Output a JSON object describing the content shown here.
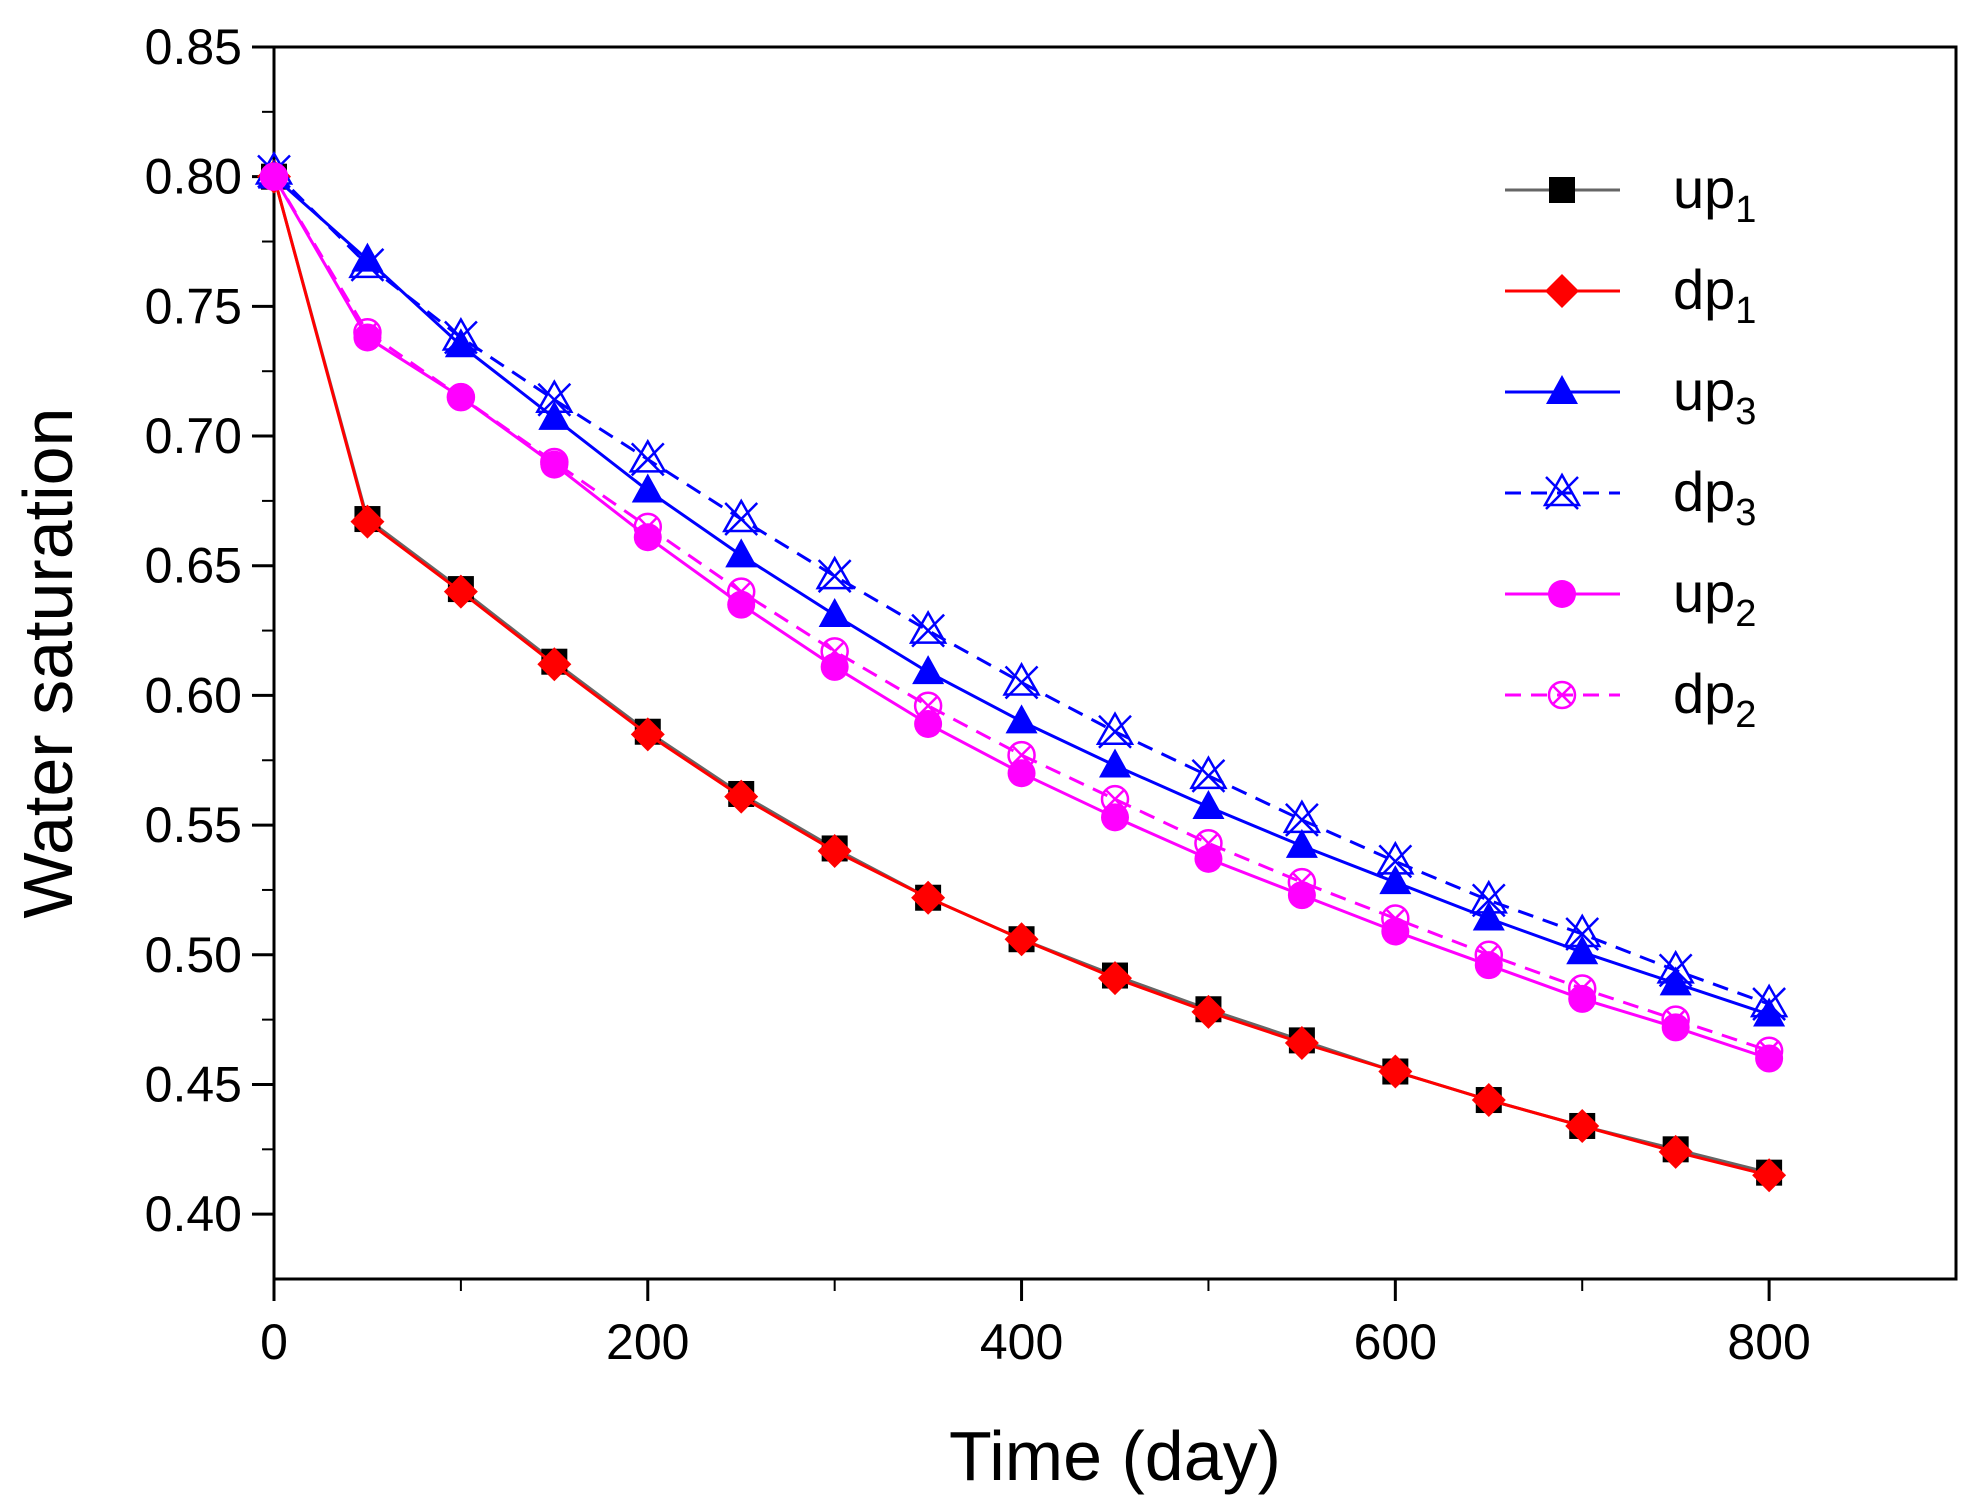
{
  "chart_data": {
    "type": "line",
    "xlabel": "Time (day)",
    "ylabel": "Water saturation",
    "xlim": [
      0,
      900
    ],
    "ylim": [
      0.375,
      0.85
    ],
    "xticks": [
      0,
      200,
      400,
      600,
      800
    ],
    "xtick_labels": [
      "0",
      "200",
      "400",
      "600",
      "800"
    ],
    "yticks": [
      0.4,
      0.45,
      0.5,
      0.55,
      0.6,
      0.65,
      0.7,
      0.75,
      0.8,
      0.85
    ],
    "ytick_labels": [
      "0.40",
      "0.45",
      "0.50",
      "0.55",
      "0.60",
      "0.65",
      "0.70",
      "0.75",
      "0.80",
      "0.85"
    ],
    "grid": false,
    "legend_position": "top-right",
    "x": [
      0,
      50,
      100,
      150,
      200,
      250,
      300,
      350,
      400,
      450,
      500,
      550,
      600,
      650,
      700,
      750,
      800
    ],
    "series": [
      {
        "name": "up",
        "sub": "1",
        "color": "#000000",
        "line_color": "#666666",
        "marker": "square",
        "dashed": false,
        "values": [
          0.8,
          0.668,
          0.641,
          0.613,
          0.586,
          0.562,
          0.541,
          0.522,
          0.506,
          0.492,
          0.479,
          0.467,
          0.455,
          0.444,
          0.434,
          0.425,
          0.416
        ]
      },
      {
        "name": "dp",
        "sub": "1",
        "color": "#ff0000",
        "line_color": "#ff0000",
        "marker": "diamond",
        "dashed": false,
        "values": [
          0.8,
          0.667,
          0.64,
          0.612,
          0.585,
          0.561,
          0.54,
          0.522,
          0.506,
          0.491,
          0.478,
          0.466,
          0.455,
          0.444,
          0.434,
          0.424,
          0.415
        ]
      },
      {
        "name": "up",
        "sub": "3",
        "color": "#0000ff",
        "line_color": "#0000ff",
        "marker": "triangle",
        "dashed": false,
        "values": [
          0.8,
          0.768,
          0.735,
          0.707,
          0.679,
          0.654,
          0.631,
          0.609,
          0.59,
          0.573,
          0.557,
          0.542,
          0.528,
          0.514,
          0.501,
          0.489,
          0.477
        ]
      },
      {
        "name": "dp",
        "sub": "3",
        "color": "#0000ff",
        "line_color": "#0000ff",
        "marker": "cross-triangle",
        "dashed": true,
        "values": [
          0.802,
          0.766,
          0.738,
          0.714,
          0.691,
          0.668,
          0.646,
          0.625,
          0.605,
          0.586,
          0.569,
          0.552,
          0.536,
          0.521,
          0.508,
          0.494,
          0.481
        ]
      },
      {
        "name": "up",
        "sub": "2",
        "color": "#ff00ff",
        "line_color": "#ff00ff",
        "marker": "circle",
        "dashed": false,
        "values": [
          0.8,
          0.738,
          0.715,
          0.689,
          0.661,
          0.635,
          0.611,
          0.589,
          0.57,
          0.553,
          0.537,
          0.523,
          0.509,
          0.496,
          0.483,
          0.472,
          0.46
        ]
      },
      {
        "name": "dp",
        "sub": "2",
        "color": "#ff00ff",
        "line_color": "#ff00ff",
        "marker": "crossed-circle",
        "dashed": true,
        "values": [
          0.8,
          0.74,
          0.715,
          0.69,
          0.665,
          0.64,
          0.617,
          0.596,
          0.577,
          0.56,
          0.543,
          0.528,
          0.514,
          0.5,
          0.487,
          0.475,
          0.463
        ]
      }
    ]
  }
}
